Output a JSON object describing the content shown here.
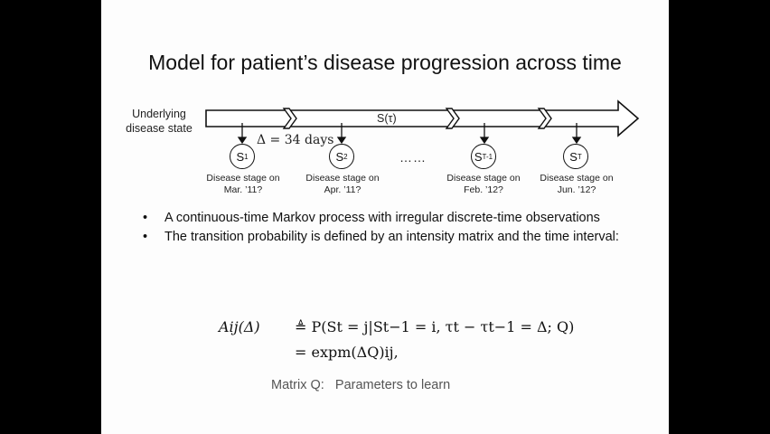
{
  "slide": {
    "title": "Model for patient’s disease progression across time",
    "underlying_label": "Underlying disease state",
    "process_label": "S(τ)",
    "delta_label": "Δ = 34 days",
    "ellipsis": "……",
    "nodes": [
      {
        "symbol": "S",
        "sub": "1",
        "caption_line1": "Disease stage on",
        "caption_line2": "Mar. ’11?"
      },
      {
        "symbol": "S",
        "sub": "2",
        "caption_line1": "Disease stage on",
        "caption_line2": "Apr. ’11?"
      },
      {
        "symbol": "S",
        "sub": "T-1",
        "caption_line1": "Disease stage on",
        "caption_line2": "Feb. ’12?"
      },
      {
        "symbol": "S",
        "sub": "T",
        "caption_line1": "Disease stage on",
        "caption_line2": "Jun. ’12?"
      }
    ],
    "bullets": [
      "A continuous-time  Markov process with irregular discrete-time observations",
      "The transition probability is defined by an intensity matrix and the time interval:"
    ],
    "equation": {
      "lhs": "Aij(Δ)",
      "line1": "≜ P(St = j|St−1 = i, τt − τt−1 = Δ; Q)",
      "line2": "= expm(ΔQ)ij,"
    },
    "matrix_note": "Matrix Q:   Parameters to learn"
  }
}
